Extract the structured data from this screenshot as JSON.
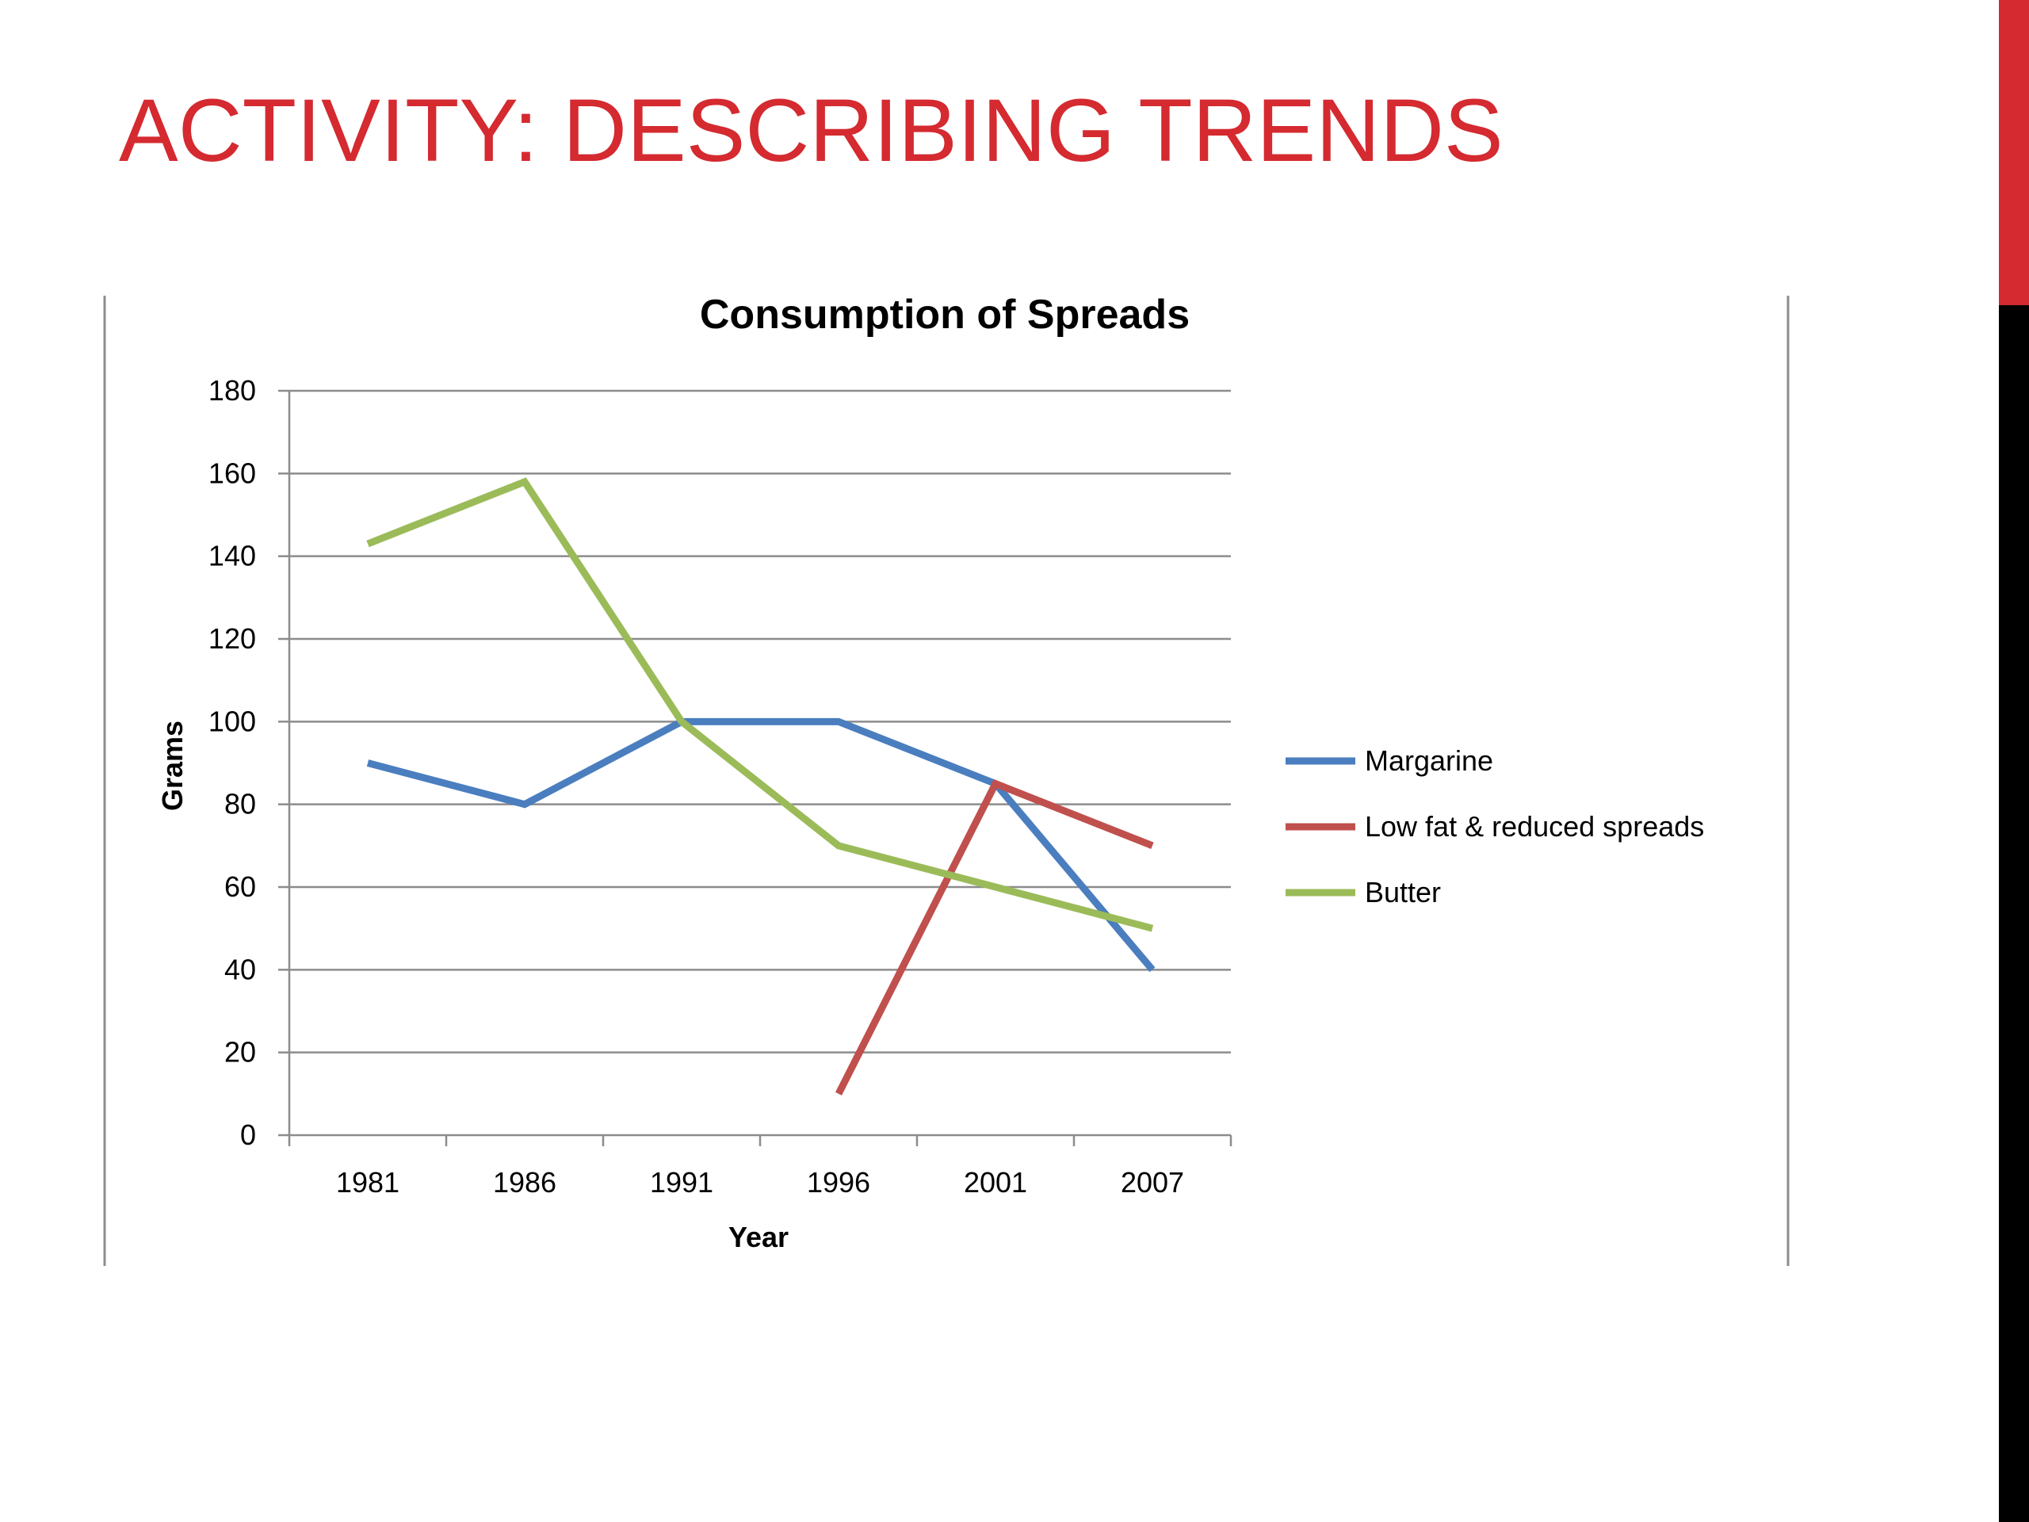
{
  "slide": {
    "title": "ACTIVITY: DESCRIBING TRENDS",
    "accent_color": "#d42a30"
  },
  "chart_data": {
    "type": "line",
    "title": "Consumption of Spreads",
    "xlabel": "Year",
    "ylabel": "Grams",
    "categories": [
      "1981",
      "1986",
      "1991",
      "1996",
      "2001",
      "2007"
    ],
    "ylim": [
      0,
      180
    ],
    "yticks": [
      0,
      20,
      40,
      60,
      80,
      100,
      120,
      140,
      160,
      180
    ],
    "grid": true,
    "legend_position": "right",
    "series": [
      {
        "name": "Margarine",
        "color": "#4a7ebf",
        "values": [
          90,
          80,
          100,
          100,
          85,
          40
        ]
      },
      {
        "name": "Low fat & reduced spreads",
        "color": "#c0504d",
        "values": [
          null,
          null,
          null,
          10,
          85,
          70
        ]
      },
      {
        "name": "Butter",
        "color": "#9bbb59",
        "values": [
          143,
          158,
          100,
          70,
          60,
          50
        ]
      }
    ]
  }
}
